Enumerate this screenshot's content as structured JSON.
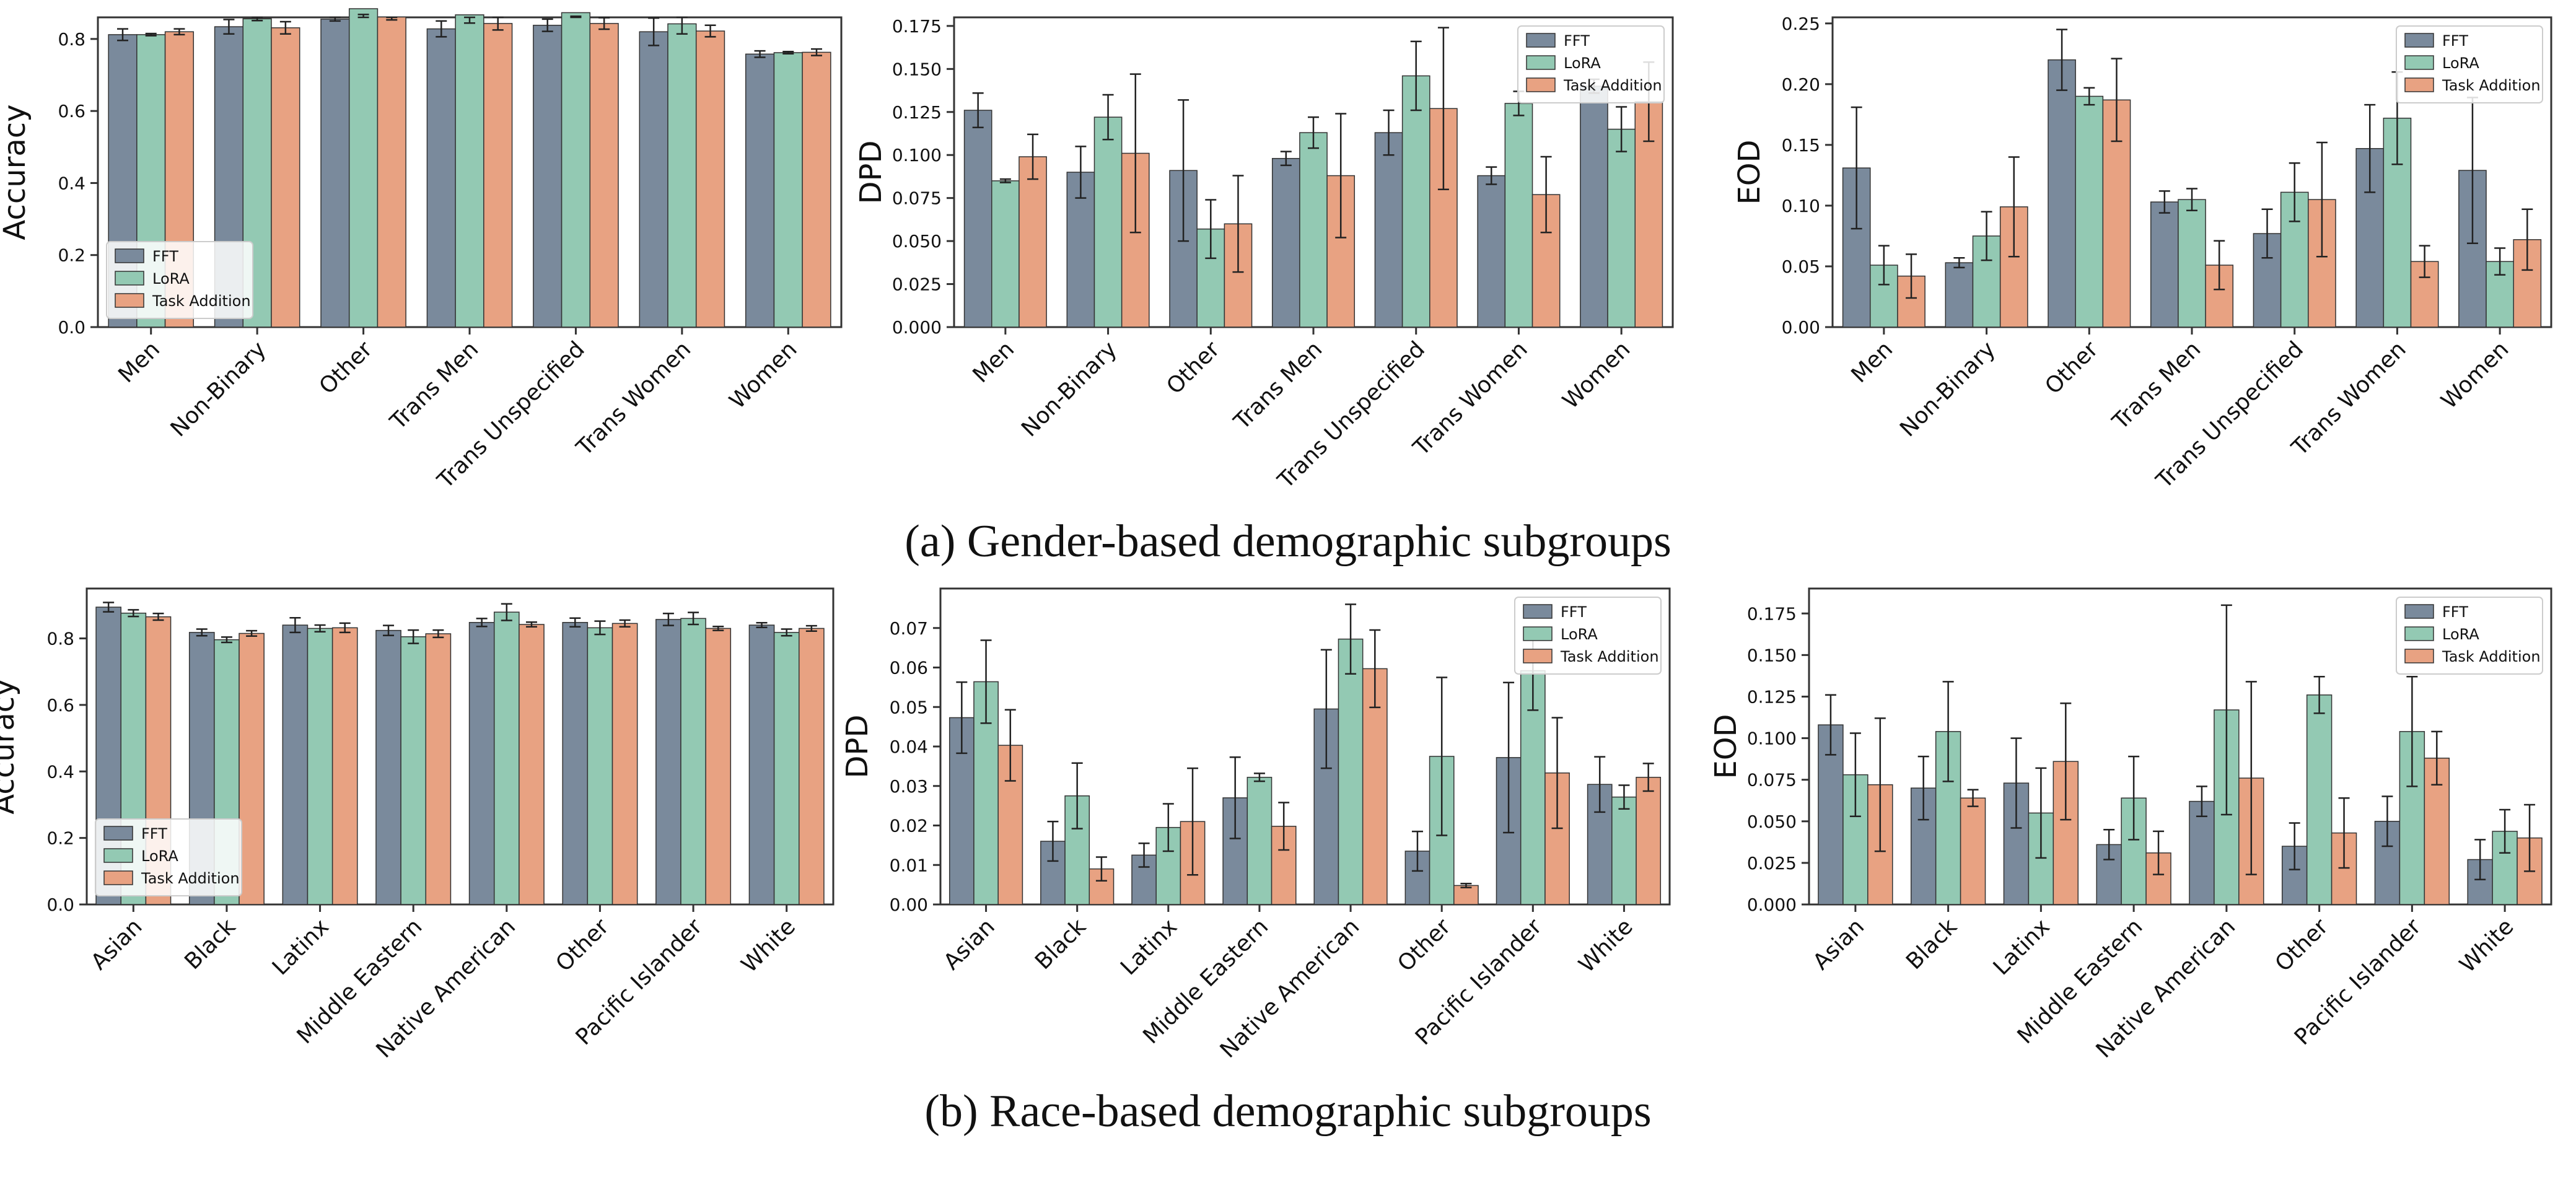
{
  "colors": {
    "FFT": "#7a8a9c",
    "LoRA": "#93c9b3",
    "Task Addition": "#e8a282",
    "axis": "#333333",
    "errbar": "#222222"
  },
  "captions": {
    "gender": "(a) Gender-based demographic subgroups",
    "race": "(b) Race-based demographic subgroups"
  },
  "chart_data": [
    {
      "id": "gender-accuracy",
      "type": "bar",
      "ylabel": "Accuracy",
      "ylim": [
        0,
        0.86
      ],
      "yticks": [
        0.0,
        0.2,
        0.4,
        0.6,
        0.8
      ],
      "tick_labels": [
        "0.0",
        "0.2",
        "0.4",
        "0.6",
        "0.8"
      ],
      "legend": "lower-left",
      "categories": [
        "Men",
        "Non-Binary",
        "Other",
        "Trans Men",
        "Trans Unspecified",
        "Trans Women",
        "Women"
      ],
      "series": [
        {
          "name": "FFT",
          "values": [
            0.812,
            0.834,
            0.855,
            0.828,
            0.838,
            0.82,
            0.758
          ],
          "errors": [
            0.016,
            0.02,
            0.005,
            0.022,
            0.017,
            0.038,
            0.009
          ]
        },
        {
          "name": "LoRA",
          "values": [
            0.812,
            0.856,
            0.884,
            0.867,
            0.873,
            0.842,
            0.762
          ],
          "errors": [
            0.003,
            0.005,
            0.016,
            0.023,
            0.01,
            0.028,
            0.003
          ]
        },
        {
          "name": "Task Addition",
          "values": [
            0.82,
            0.831,
            0.861,
            0.843,
            0.843,
            0.822,
            0.763
          ],
          "errors": [
            0.008,
            0.017,
            0.008,
            0.018,
            0.016,
            0.016,
            0.009
          ]
        }
      ]
    },
    {
      "id": "gender-dpd",
      "type": "bar",
      "ylabel": "DPD",
      "ylim": [
        0,
        0.18
      ],
      "yticks": [
        0.0,
        0.025,
        0.05,
        0.075,
        0.1,
        0.125,
        0.15,
        0.175
      ],
      "tick_labels": [
        "0.000",
        "0.025",
        "0.050",
        "0.075",
        "0.100",
        "0.125",
        "0.150",
        "0.175"
      ],
      "legend": "top-right",
      "categories": [
        "Men",
        "Non-Binary",
        "Other",
        "Trans Men",
        "Trans Unspecified",
        "Trans Women",
        "Women"
      ],
      "series": [
        {
          "name": "FFT",
          "values": [
            0.126,
            0.09,
            0.091,
            0.098,
            0.113,
            0.088,
            0.14
          ],
          "errors": [
            0.01,
            0.015,
            0.041,
            0.004,
            0.013,
            0.005,
            0.004
          ]
        },
        {
          "name": "LoRA",
          "values": [
            0.085,
            0.122,
            0.057,
            0.113,
            0.146,
            0.13,
            0.115
          ],
          "errors": [
            0.001,
            0.013,
            0.017,
            0.009,
            0.02,
            0.007,
            0.013
          ]
        },
        {
          "name": "Task Addition",
          "values": [
            0.099,
            0.101,
            0.06,
            0.088,
            0.127,
            0.077,
            0.131
          ],
          "errors": [
            0.013,
            0.046,
            0.028,
            0.036,
            0.047,
            0.022,
            0.023
          ]
        }
      ]
    },
    {
      "id": "gender-eod",
      "type": "bar",
      "ylabel": "EOD",
      "ylim": [
        0,
        0.255
      ],
      "yticks": [
        0.0,
        0.05,
        0.1,
        0.15,
        0.2,
        0.25
      ],
      "tick_labels": [
        "0.00",
        "0.05",
        "0.10",
        "0.15",
        "0.20",
        "0.25"
      ],
      "legend": "top-right",
      "categories": [
        "Men",
        "Non-Binary",
        "Other",
        "Trans Men",
        "Trans Unspecified",
        "Trans Women",
        "Women"
      ],
      "series": [
        {
          "name": "FFT",
          "values": [
            0.131,
            0.053,
            0.22,
            0.103,
            0.077,
            0.147,
            0.129
          ],
          "errors": [
            0.05,
            0.004,
            0.025,
            0.009,
            0.02,
            0.036,
            0.06
          ]
        },
        {
          "name": "LoRA",
          "values": [
            0.051,
            0.075,
            0.19,
            0.105,
            0.111,
            0.172,
            0.054
          ],
          "errors": [
            0.016,
            0.02,
            0.007,
            0.009,
            0.024,
            0.038,
            0.011
          ]
        },
        {
          "name": "Task Addition",
          "values": [
            0.042,
            0.099,
            0.187,
            0.051,
            0.105,
            0.054,
            0.072
          ],
          "errors": [
            0.018,
            0.041,
            0.034,
            0.02,
            0.047,
            0.013,
            0.025
          ]
        }
      ]
    },
    {
      "id": "race-accuracy",
      "type": "bar",
      "ylabel": "Accuracy",
      "ylim": [
        0,
        0.95
      ],
      "yticks": [
        0.0,
        0.2,
        0.4,
        0.6,
        0.8
      ],
      "tick_labels": [
        "0.0",
        "0.2",
        "0.4",
        "0.6",
        "0.8"
      ],
      "legend": "lower-left",
      "categories": [
        "Asian",
        "Black",
        "Latinx",
        "Middle Eastern",
        "Native American",
        "Other",
        "Pacific Islander",
        "White"
      ],
      "series": [
        {
          "name": "FFT",
          "values": [
            0.894,
            0.818,
            0.84,
            0.824,
            0.848,
            0.848,
            0.857,
            0.84
          ],
          "errors": [
            0.014,
            0.01,
            0.022,
            0.015,
            0.012,
            0.013,
            0.018,
            0.007
          ]
        },
        {
          "name": "LoRA",
          "values": [
            0.876,
            0.796,
            0.83,
            0.805,
            0.879,
            0.832,
            0.86,
            0.818
          ],
          "errors": [
            0.01,
            0.008,
            0.01,
            0.02,
            0.025,
            0.02,
            0.018,
            0.01
          ]
        },
        {
          "name": "Task Addition",
          "values": [
            0.865,
            0.815,
            0.832,
            0.814,
            0.842,
            0.845,
            0.83,
            0.83
          ],
          "errors": [
            0.01,
            0.008,
            0.014,
            0.011,
            0.007,
            0.01,
            0.006,
            0.008
          ]
        }
      ]
    },
    {
      "id": "race-dpd",
      "type": "bar",
      "ylabel": "DPD",
      "ylim": [
        0,
        0.08
      ],
      "yticks": [
        0.0,
        0.01,
        0.02,
        0.03,
        0.04,
        0.05,
        0.06,
        0.07
      ],
      "tick_labels": [
        "0.00",
        "0.01",
        "0.02",
        "0.03",
        "0.04",
        "0.05",
        "0.06",
        "0.07"
      ],
      "legend": "top-right",
      "categories": [
        "Asian",
        "Black",
        "Latinx",
        "Middle Eastern",
        "Native American",
        "Other",
        "Pacific Islander",
        "White"
      ],
      "series": [
        {
          "name": "FFT",
          "values": [
            0.0473,
            0.016,
            0.0125,
            0.027,
            0.0495,
            0.0135,
            0.0372,
            0.0304
          ],
          "errors": [
            0.009,
            0.005,
            0.003,
            0.0103,
            0.015,
            0.005,
            0.019,
            0.007
          ]
        },
        {
          "name": "LoRA",
          "values": [
            0.0564,
            0.0275,
            0.0195,
            0.0322,
            0.0672,
            0.0375,
            0.0592,
            0.0272
          ],
          "errors": [
            0.0105,
            0.0083,
            0.006,
            0.001,
            0.0088,
            0.02,
            0.01,
            0.003
          ]
        },
        {
          "name": "Task Addition",
          "values": [
            0.0403,
            0.009,
            0.021,
            0.0198,
            0.0597,
            0.0048,
            0.0333,
            0.0322
          ],
          "errors": [
            0.009,
            0.003,
            0.0135,
            0.006,
            0.0098,
            0.0005,
            0.014,
            0.0035
          ]
        }
      ]
    },
    {
      "id": "race-eod",
      "type": "bar",
      "ylabel": "EOD",
      "ylim": [
        0,
        0.19
      ],
      "yticks": [
        0.0,
        0.025,
        0.05,
        0.075,
        0.1,
        0.125,
        0.15,
        0.175
      ],
      "tick_labels": [
        "0.000",
        "0.025",
        "0.050",
        "0.075",
        "0.100",
        "0.125",
        "0.150",
        "0.175"
      ],
      "legend": "top-right",
      "categories": [
        "Asian",
        "Black",
        "Latinx",
        "Middle Eastern",
        "Native American",
        "Other",
        "Pacific Islander",
        "White"
      ],
      "series": [
        {
          "name": "FFT",
          "values": [
            0.108,
            0.07,
            0.073,
            0.036,
            0.062,
            0.035,
            0.05,
            0.027
          ],
          "errors": [
            0.018,
            0.019,
            0.027,
            0.009,
            0.009,
            0.014,
            0.015,
            0.012
          ]
        },
        {
          "name": "LoRA",
          "values": [
            0.078,
            0.104,
            0.055,
            0.064,
            0.117,
            0.126,
            0.104,
            0.044
          ],
          "errors": [
            0.025,
            0.03,
            0.027,
            0.025,
            0.063,
            0.011,
            0.033,
            0.013
          ]
        },
        {
          "name": "Task Addition",
          "values": [
            0.072,
            0.064,
            0.086,
            0.031,
            0.076,
            0.043,
            0.088,
            0.04
          ],
          "errors": [
            0.04,
            0.005,
            0.035,
            0.013,
            0.058,
            0.021,
            0.016,
            0.02
          ]
        }
      ]
    }
  ]
}
